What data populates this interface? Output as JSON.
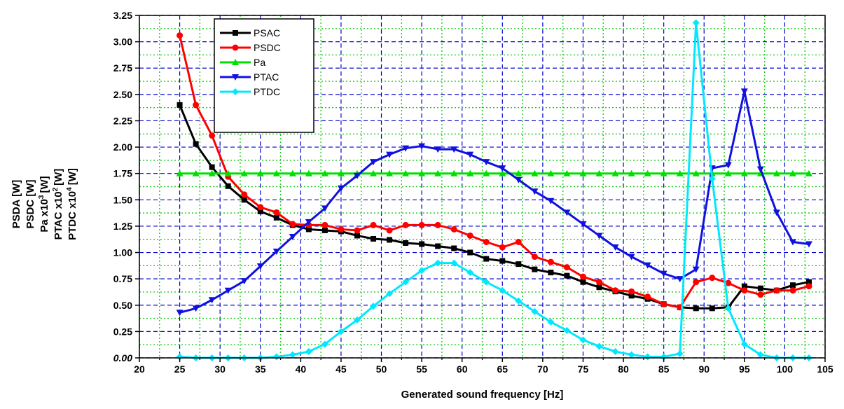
{
  "chart_data": {
    "type": "line",
    "xlabel": "Generated sound frequency [Hz]",
    "ylabel_lines": [
      "PSDA [W]",
      "PSDC [W]",
      "Pa x10",
      "PTAC x10",
      "PTDC x10"
    ],
    "ylabel_units": [
      "",
      "",
      "[W]",
      "[W]",
      "[W]"
    ],
    "ylabel_superscripts": [
      "",
      "",
      "3",
      "2",
      "4"
    ],
    "xlim": [
      20,
      105
    ],
    "ylim": [
      0,
      3.25
    ],
    "x_ticks": [
      "20",
      "25",
      "30",
      "35",
      "40",
      "45",
      "50",
      "55",
      "60",
      "65",
      "70",
      "75",
      "80",
      "85",
      "90",
      "95",
      "100",
      "105"
    ],
    "y_ticks": [
      "0.00",
      "0.25",
      "0.50",
      "0.75",
      "1.00",
      "1.25",
      "1.50",
      "1.75",
      "2.00",
      "2.25",
      "2.50",
      "2.75",
      "3.00",
      "3.25"
    ],
    "grid": true,
    "legend_position": "top-left",
    "x": [
      25,
      27,
      29,
      31,
      33,
      35,
      37,
      39,
      41,
      43,
      45,
      47,
      49,
      51,
      53,
      55,
      57,
      59,
      61,
      63,
      65,
      67,
      69,
      71,
      73,
      75,
      77,
      79,
      81,
      83,
      85,
      87,
      89,
      91,
      93,
      95,
      97,
      99,
      101,
      103
    ],
    "series": [
      {
        "name": "PSAC",
        "color": "#000000",
        "marker": "square",
        "values": [
          2.4,
          2.03,
          1.81,
          1.63,
          1.5,
          1.39,
          1.33,
          1.26,
          1.22,
          1.21,
          1.2,
          1.16,
          1.13,
          1.12,
          1.09,
          1.08,
          1.06,
          1.04,
          1.0,
          0.94,
          0.92,
          0.89,
          0.84,
          0.81,
          0.78,
          0.72,
          0.67,
          0.63,
          0.59,
          0.56,
          0.51,
          0.48,
          0.47,
          0.47,
          0.48,
          0.68,
          0.66,
          0.64,
          0.69,
          0.72
        ]
      },
      {
        "name": "PSDC",
        "color": "#ff0000",
        "marker": "circle",
        "values": [
          3.06,
          2.4,
          2.11,
          1.72,
          1.55,
          1.43,
          1.38,
          1.27,
          1.26,
          1.26,
          1.22,
          1.21,
          1.26,
          1.21,
          1.26,
          1.26,
          1.26,
          1.22,
          1.16,
          1.1,
          1.05,
          1.1,
          0.96,
          0.91,
          0.86,
          0.77,
          0.72,
          0.64,
          0.63,
          0.58,
          0.51,
          0.48,
          0.72,
          0.76,
          0.71,
          0.64,
          0.6,
          0.64,
          0.64,
          0.68
        ]
      },
      {
        "name": "Pa",
        "color": "#00e000",
        "marker": "triangle-up",
        "values": [
          1.75,
          1.75,
          1.75,
          1.75,
          1.75,
          1.75,
          1.75,
          1.75,
          1.75,
          1.75,
          1.75,
          1.75,
          1.75,
          1.75,
          1.75,
          1.75,
          1.75,
          1.75,
          1.75,
          1.75,
          1.75,
          1.75,
          1.75,
          1.75,
          1.75,
          1.75,
          1.75,
          1.75,
          1.75,
          1.75,
          1.75,
          1.75,
          1.75,
          1.75,
          1.75,
          1.75,
          1.75,
          1.75,
          1.75,
          1.75
        ]
      },
      {
        "name": "PTAC",
        "color": "#1010e0",
        "marker": "triangle-down",
        "values": [
          0.43,
          0.47,
          0.55,
          0.64,
          0.73,
          0.87,
          1.01,
          1.15,
          1.29,
          1.42,
          1.61,
          1.73,
          1.86,
          1.93,
          1.99,
          2.01,
          1.98,
          1.98,
          1.93,
          1.86,
          1.8,
          1.69,
          1.58,
          1.49,
          1.38,
          1.27,
          1.16,
          1.05,
          0.96,
          0.88,
          0.8,
          0.75,
          0.84,
          1.8,
          1.83,
          2.53,
          1.79,
          1.38,
          1.1,
          1.08
        ]
      },
      {
        "name": "PTDC",
        "color": "#00e8ff",
        "marker": "diamond",
        "values": [
          0.01,
          0.0,
          0.0,
          0.0,
          0.0,
          0.0,
          0.01,
          0.03,
          0.06,
          0.13,
          0.25,
          0.36,
          0.49,
          0.61,
          0.72,
          0.83,
          0.9,
          0.9,
          0.81,
          0.72,
          0.64,
          0.54,
          0.44,
          0.34,
          0.26,
          0.17,
          0.11,
          0.06,
          0.03,
          0.01,
          0.01,
          0.04,
          3.18,
          1.7,
          0.47,
          0.13,
          0.03,
          0.0,
          0.0,
          0.0
        ]
      }
    ]
  }
}
